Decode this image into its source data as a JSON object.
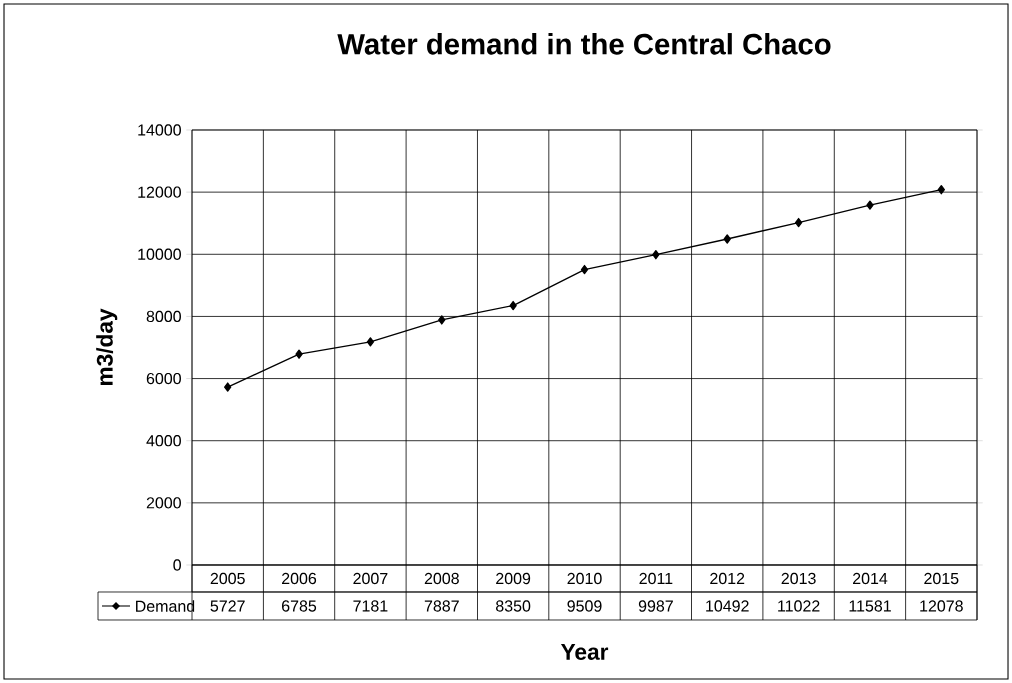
{
  "chart_data": {
    "type": "line",
    "title": "Water demand in the Central Chaco",
    "xlabel": "Year",
    "ylabel": "m3/day",
    "categories": [
      "2005",
      "2006",
      "2007",
      "2008",
      "2009",
      "2010",
      "2011",
      "2012",
      "2013",
      "2014",
      "2015"
    ],
    "series": [
      {
        "name": "Demand",
        "color": "#000000",
        "values": [
          5727,
          6785,
          7181,
          7887,
          8350,
          9509,
          9987,
          10492,
          11022,
          11581,
          12078
        ]
      }
    ],
    "ylim": [
      0,
      14000
    ],
    "yticks": [
      0,
      2000,
      4000,
      6000,
      8000,
      10000,
      12000,
      14000
    ],
    "grid": true,
    "legend": "bottom",
    "marker": "diamond",
    "line_style": "solid",
    "data_labels": true
  }
}
